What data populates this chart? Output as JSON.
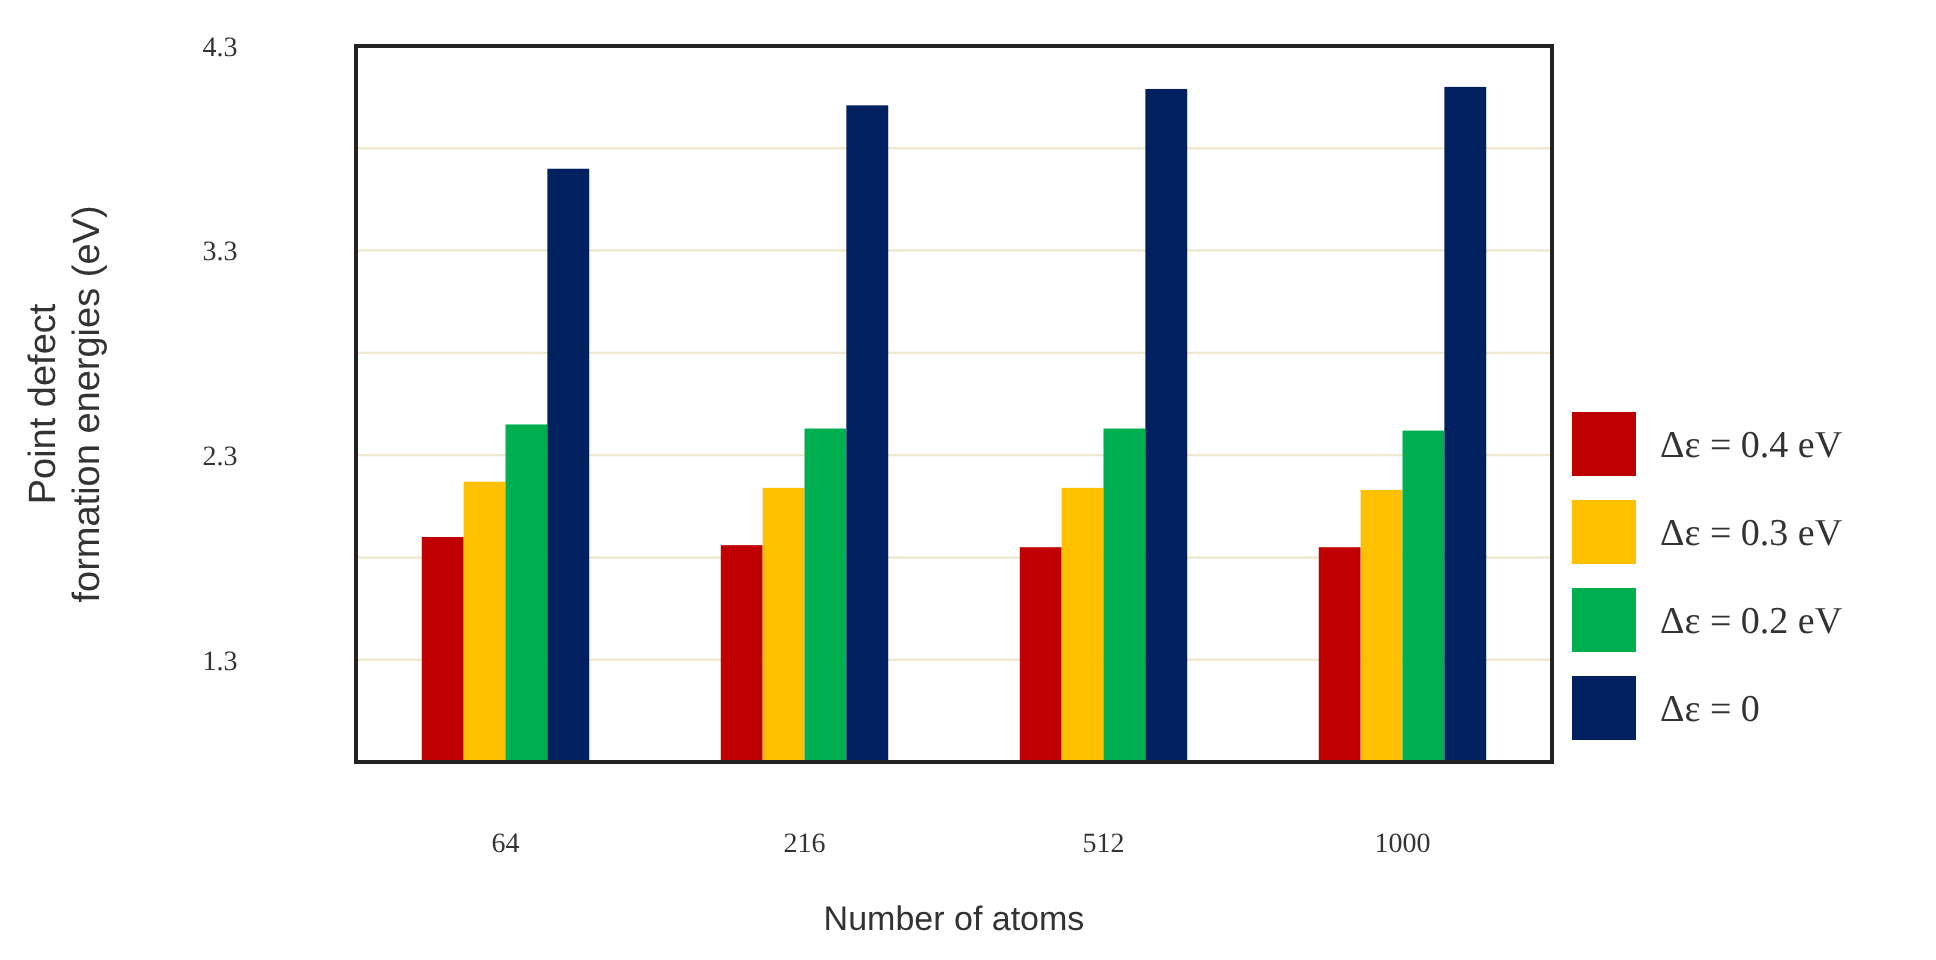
{
  "chart_data": {
    "type": "bar",
    "xlabel": "Number of atoms",
    "ylabel": "Point defect\nformation energies (eV)",
    "categories": [
      "64",
      "216",
      "512",
      "1000"
    ],
    "series": [
      {
        "name": "Δε = 0.4 eV",
        "color": "#c00000",
        "values": [
          1.9,
          1.86,
          1.85,
          1.85
        ]
      },
      {
        "name": "Δε = 0.3 eV",
        "color": "#ffc000",
        "values": [
          2.17,
          2.14,
          2.14,
          2.13
        ]
      },
      {
        "name": "Δε = 0.2 eV",
        "color": "#00b050",
        "values": [
          2.45,
          2.43,
          2.43,
          2.42
        ]
      },
      {
        "name": "Δε = 0",
        "color": "#002060",
        "values": [
          3.7,
          4.01,
          4.09,
          4.1
        ]
      }
    ],
    "ylim": [
      0.8,
      4.3
    ],
    "yticks": [
      1.3,
      {
        "value": 1.8,
        "label": null
      },
      2.3,
      {
        "value": 2.8,
        "label": null
      },
      3.3,
      {
        "value": 3.8,
        "label": null
      },
      4.3
    ],
    "grid": "y",
    "legend": "right"
  }
}
